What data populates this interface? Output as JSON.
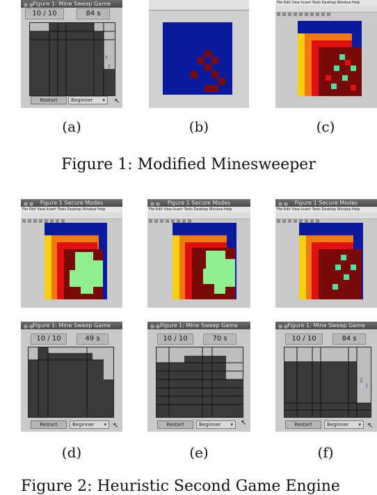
{
  "row1": {
    "a": {
      "title": "Figure 1: Mine Sweep Game",
      "mines": "10 / 10",
      "time": "84 s",
      "restart": "Restart",
      "level": "Beginner"
    },
    "b": {
      "heatmap_title": ""
    },
    "c": {
      "heatmap_title": ""
    },
    "labels": [
      "(a)",
      "(b)",
      "(c)"
    ],
    "caption": "Figure 1: Modified Minesweeper"
  },
  "row2": {
    "d_top_title": "Figure 1 Secure Modes",
    "e_top_title": "Figure 1 Secure Modes",
    "f_top_title": "Figure 1 Secure Modes",
    "d": {
      "title": "Figure 1: Mine Sweep Game",
      "mines": "10 / 10",
      "time": "49 s",
      "restart": "Restart",
      "level": "Beginner"
    },
    "e": {
      "title": "Figure 1: Mine Sweep Game",
      "mines": "10 / 10",
      "time": "70 s",
      "restart": "Restart",
      "level": "Beginner"
    },
    "f": {
      "title": "Figure 1: Mine Sweep Game",
      "mines": "10 / 10",
      "time": "84 s",
      "restart": "Restart",
      "level": "Beginner"
    },
    "labels": [
      "(d)",
      "(e)",
      "(f)"
    ],
    "caption": "Figure 2: Heuristic Second Game Engine"
  },
  "menu_text": "File Edit View Insert Tools Desktop Window Help",
  "colors": {
    "blue": "#0a1a9c",
    "darkred": "#7a0a0a",
    "red": "#e01010",
    "orange": "#f07a10",
    "yellow": "#f8d010",
    "green": "#90f090",
    "teal": "#50e0a0"
  }
}
